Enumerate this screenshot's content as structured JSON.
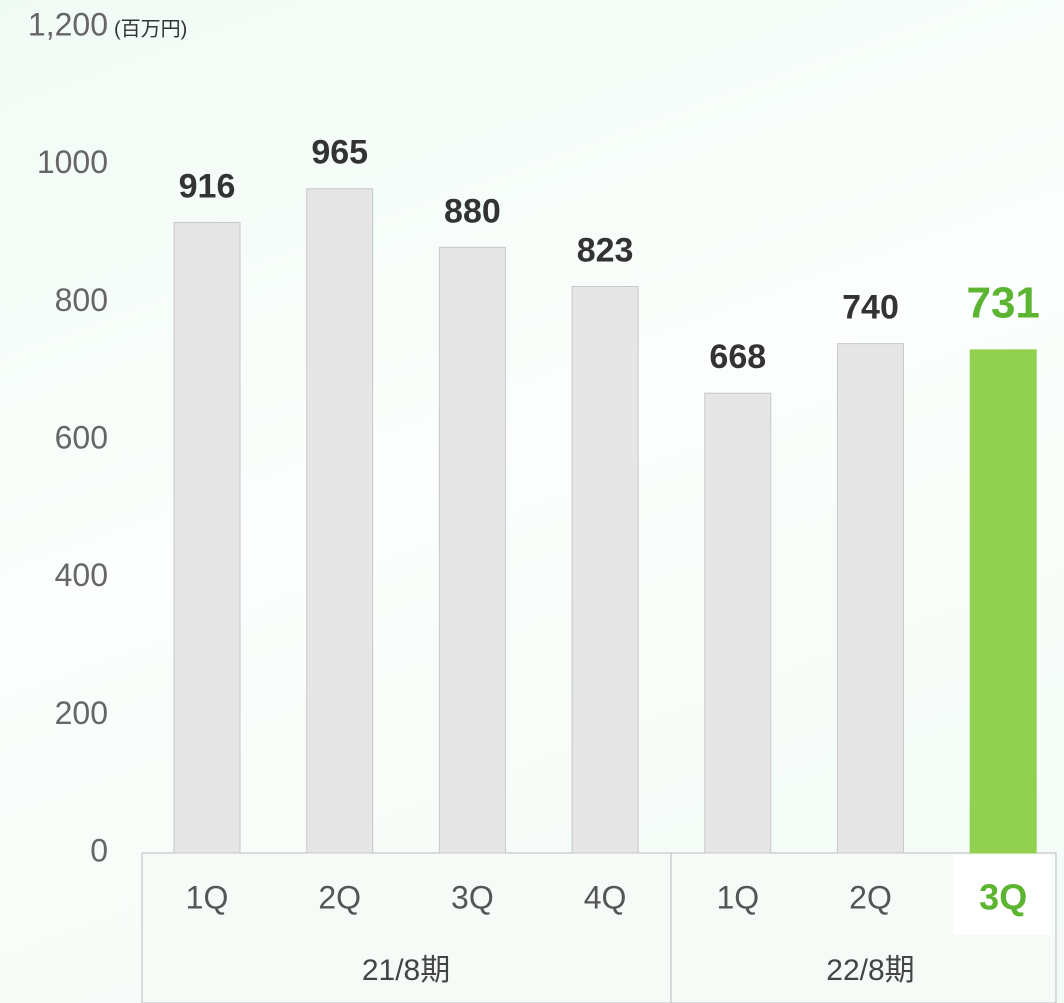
{
  "chart_data": {
    "type": "bar",
    "unit": "(百万円)",
    "categories": [
      "1Q",
      "2Q",
      "3Q",
      "4Q",
      "1Q",
      "2Q",
      "3Q"
    ],
    "groups": [
      {
        "label": "21/8期",
        "size": 4
      },
      {
        "label": "22/8期",
        "size": 3
      }
    ],
    "values": [
      916,
      965,
      880,
      823,
      668,
      740,
      731
    ],
    "color": "#e6e6e6",
    "highlight": 6,
    "highlight_color": "#92d050",
    "ylim": [
      0,
      1200
    ],
    "yticks": [
      0,
      200,
      400,
      600,
      800,
      1000,
      {
        "value": 1200,
        "label": "1,200"
      }
    ],
    "grid": false
  }
}
